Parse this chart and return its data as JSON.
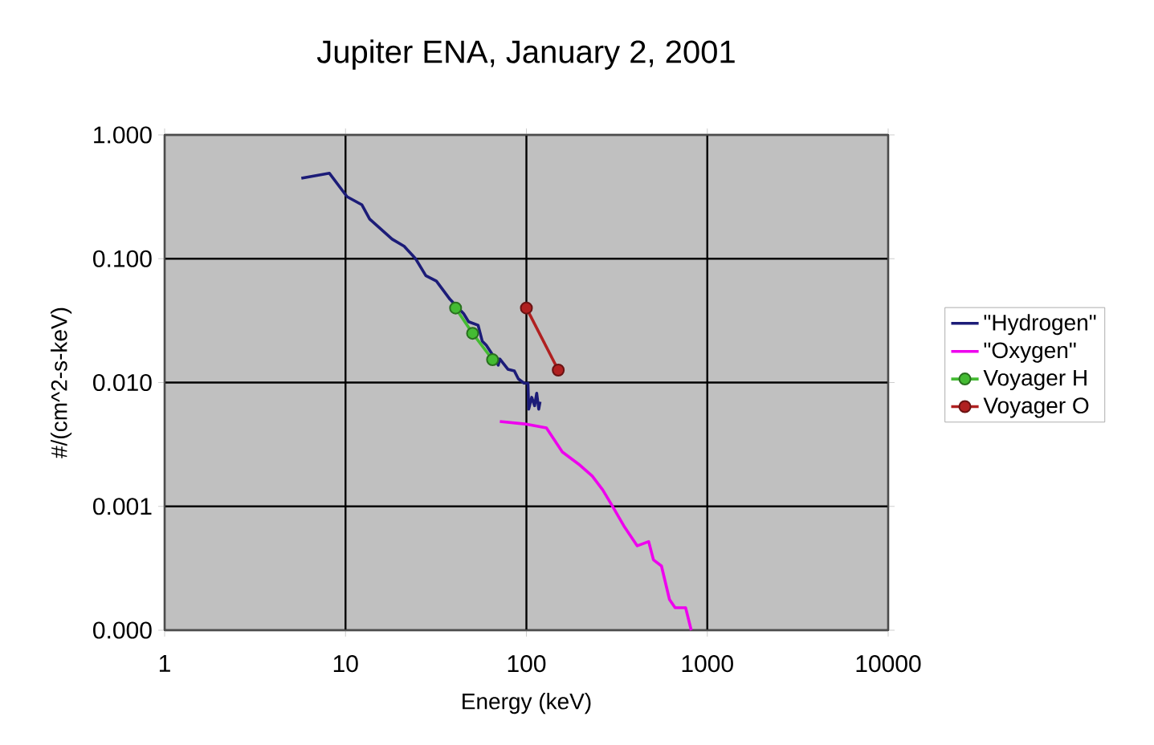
{
  "chart_data": {
    "type": "line",
    "title": "Jupiter ENA, January 2, 2001",
    "xlabel": "Energy (keV)",
    "ylabel": "#/(cm^2-s-keV)",
    "log": "xy",
    "grid": true,
    "legend": "right",
    "xlim": [
      1,
      10000
    ],
    "ylim": [
      0.0001,
      1
    ],
    "xticks": [
      1,
      10,
      100,
      1000,
      10000
    ],
    "yticks": [
      {
        "value": 1,
        "label": "1.000"
      },
      {
        "value": 0.1,
        "label": "0.100"
      },
      {
        "value": 0.01,
        "label": "0.010"
      },
      {
        "value": 0.001,
        "label": "0.001"
      },
      {
        "value": 0.0001,
        "label": "0.000"
      }
    ],
    "series": [
      {
        "name": "\"Hydrogen\"",
        "color": "#1c1c78",
        "marker": "none",
        "x": [
          5.7,
          8.15,
          10.2,
          12.3,
          13.6,
          18.1,
          21.1,
          24.4,
          27.8,
          31.8,
          37.8,
          45,
          47.9,
          54.1,
          57,
          60,
          66.4,
          69.9,
          71.3,
          79,
          85.8,
          90.3,
          97,
          102,
          103,
          107,
          111,
          114,
          117,
          119
        ],
        "values": [
          0.447,
          0.49,
          0.317,
          0.273,
          0.209,
          0.144,
          0.126,
          0.1,
          0.073,
          0.066,
          0.047,
          0.036,
          0.031,
          0.029,
          0.0216,
          0.02,
          0.016,
          0.0138,
          0.0155,
          0.0128,
          0.0124,
          0.0107,
          0.0099,
          0.0099,
          0.0061,
          0.0076,
          0.0065,
          0.0082,
          0.0061,
          0.007
        ]
      },
      {
        "name": "\"Oxygen\"",
        "color": "#ee00ee",
        "marker": "none",
        "x": [
          71.3,
          98,
          129,
          158,
          194,
          231,
          264,
          302,
          349,
          410,
          474,
          504,
          558,
          618,
          664,
          759,
          815
        ],
        "values": [
          0.00485,
          0.00463,
          0.0043,
          0.00275,
          0.0022,
          0.00176,
          0.00136,
          0.00098,
          0.00068,
          0.00048,
          0.00052,
          0.00037,
          0.00033,
          0.000177,
          0.000152,
          0.000152,
          0.0001
        ]
      },
      {
        "name": "Voyager H",
        "color": "#44bb33",
        "marker": "circle",
        "x": [
          40.6,
          50.4,
          65
        ],
        "values": [
          0.04,
          0.025,
          0.0153
        ]
      },
      {
        "name": "Voyager O",
        "color": "#b02020",
        "marker": "circle",
        "x": [
          100,
          150
        ],
        "values": [
          0.04,
          0.0126
        ]
      }
    ]
  }
}
